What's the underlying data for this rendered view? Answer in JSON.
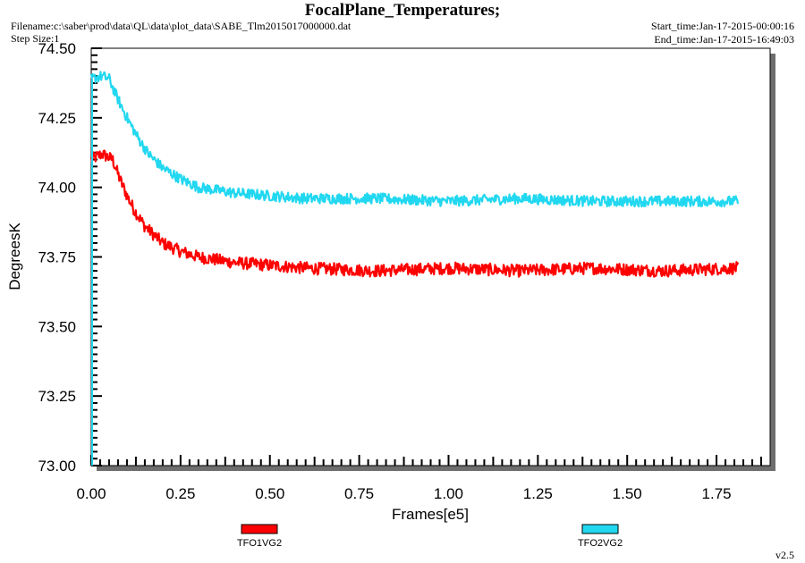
{
  "header": {
    "title": "FocalPlane_Temperatures;",
    "filename": "Filename:c:\\saber\\prod\\data\\QL\\data\\plot_data\\SABE_Tlm2015017000000.dat",
    "step_size": "Step Size:1",
    "start_time": "Start_time:Jan-17-2015-00:00:16",
    "end_time": "End_time:Jan-17-2015-16:49:03"
  },
  "footer": {
    "version": "v2.5"
  },
  "chart_data": {
    "type": "line",
    "title": "FocalPlane_Temperatures;",
    "xlabel": "Frames[e5]",
    "ylabel": "DegreesK",
    "xlim": [
      0,
      1.9
    ],
    "ylim": [
      73.0,
      74.5
    ],
    "x_ticks": [
      "0.00",
      "0.25",
      "0.50",
      "0.75",
      "1.00",
      "1.25",
      "1.50",
      "1.75"
    ],
    "y_ticks": [
      "73.00",
      "73.25",
      "73.50",
      "73.75",
      "74.00",
      "74.25",
      "74.50"
    ],
    "legend_placement": "bottom",
    "grid": false,
    "series": [
      {
        "name": "TFO1VG2",
        "color": "#ff0000",
        "noise": 0.022,
        "points": [
          [
            0.0,
            74.1
          ],
          [
            0.03,
            74.12
          ],
          [
            0.06,
            74.1
          ],
          [
            0.08,
            74.03
          ],
          [
            0.1,
            73.97
          ],
          [
            0.12,
            73.92
          ],
          [
            0.15,
            73.86
          ],
          [
            0.2,
            73.8
          ],
          [
            0.25,
            73.77
          ],
          [
            0.3,
            73.75
          ],
          [
            0.4,
            73.73
          ],
          [
            0.5,
            73.72
          ],
          [
            0.6,
            73.71
          ],
          [
            0.8,
            73.7
          ],
          [
            1.0,
            73.71
          ],
          [
            1.2,
            73.7
          ],
          [
            1.4,
            73.71
          ],
          [
            1.6,
            73.7
          ],
          [
            1.81,
            73.71
          ]
        ]
      },
      {
        "name": "TFO2VG2",
        "color": "#22d8f0",
        "noise": 0.019,
        "points": [
          [
            0.0,
            74.39
          ],
          [
            0.03,
            74.4
          ],
          [
            0.05,
            74.39
          ],
          [
            0.07,
            74.33
          ],
          [
            0.1,
            74.25
          ],
          [
            0.13,
            74.18
          ],
          [
            0.16,
            74.12
          ],
          [
            0.2,
            74.07
          ],
          [
            0.25,
            74.03
          ],
          [
            0.3,
            74.0
          ],
          [
            0.4,
            73.98
          ],
          [
            0.5,
            73.97
          ],
          [
            0.6,
            73.96
          ],
          [
            0.8,
            73.96
          ],
          [
            1.0,
            73.95
          ],
          [
            1.2,
            73.96
          ],
          [
            1.4,
            73.95
          ],
          [
            1.6,
            73.95
          ],
          [
            1.81,
            73.95
          ]
        ]
      }
    ]
  }
}
